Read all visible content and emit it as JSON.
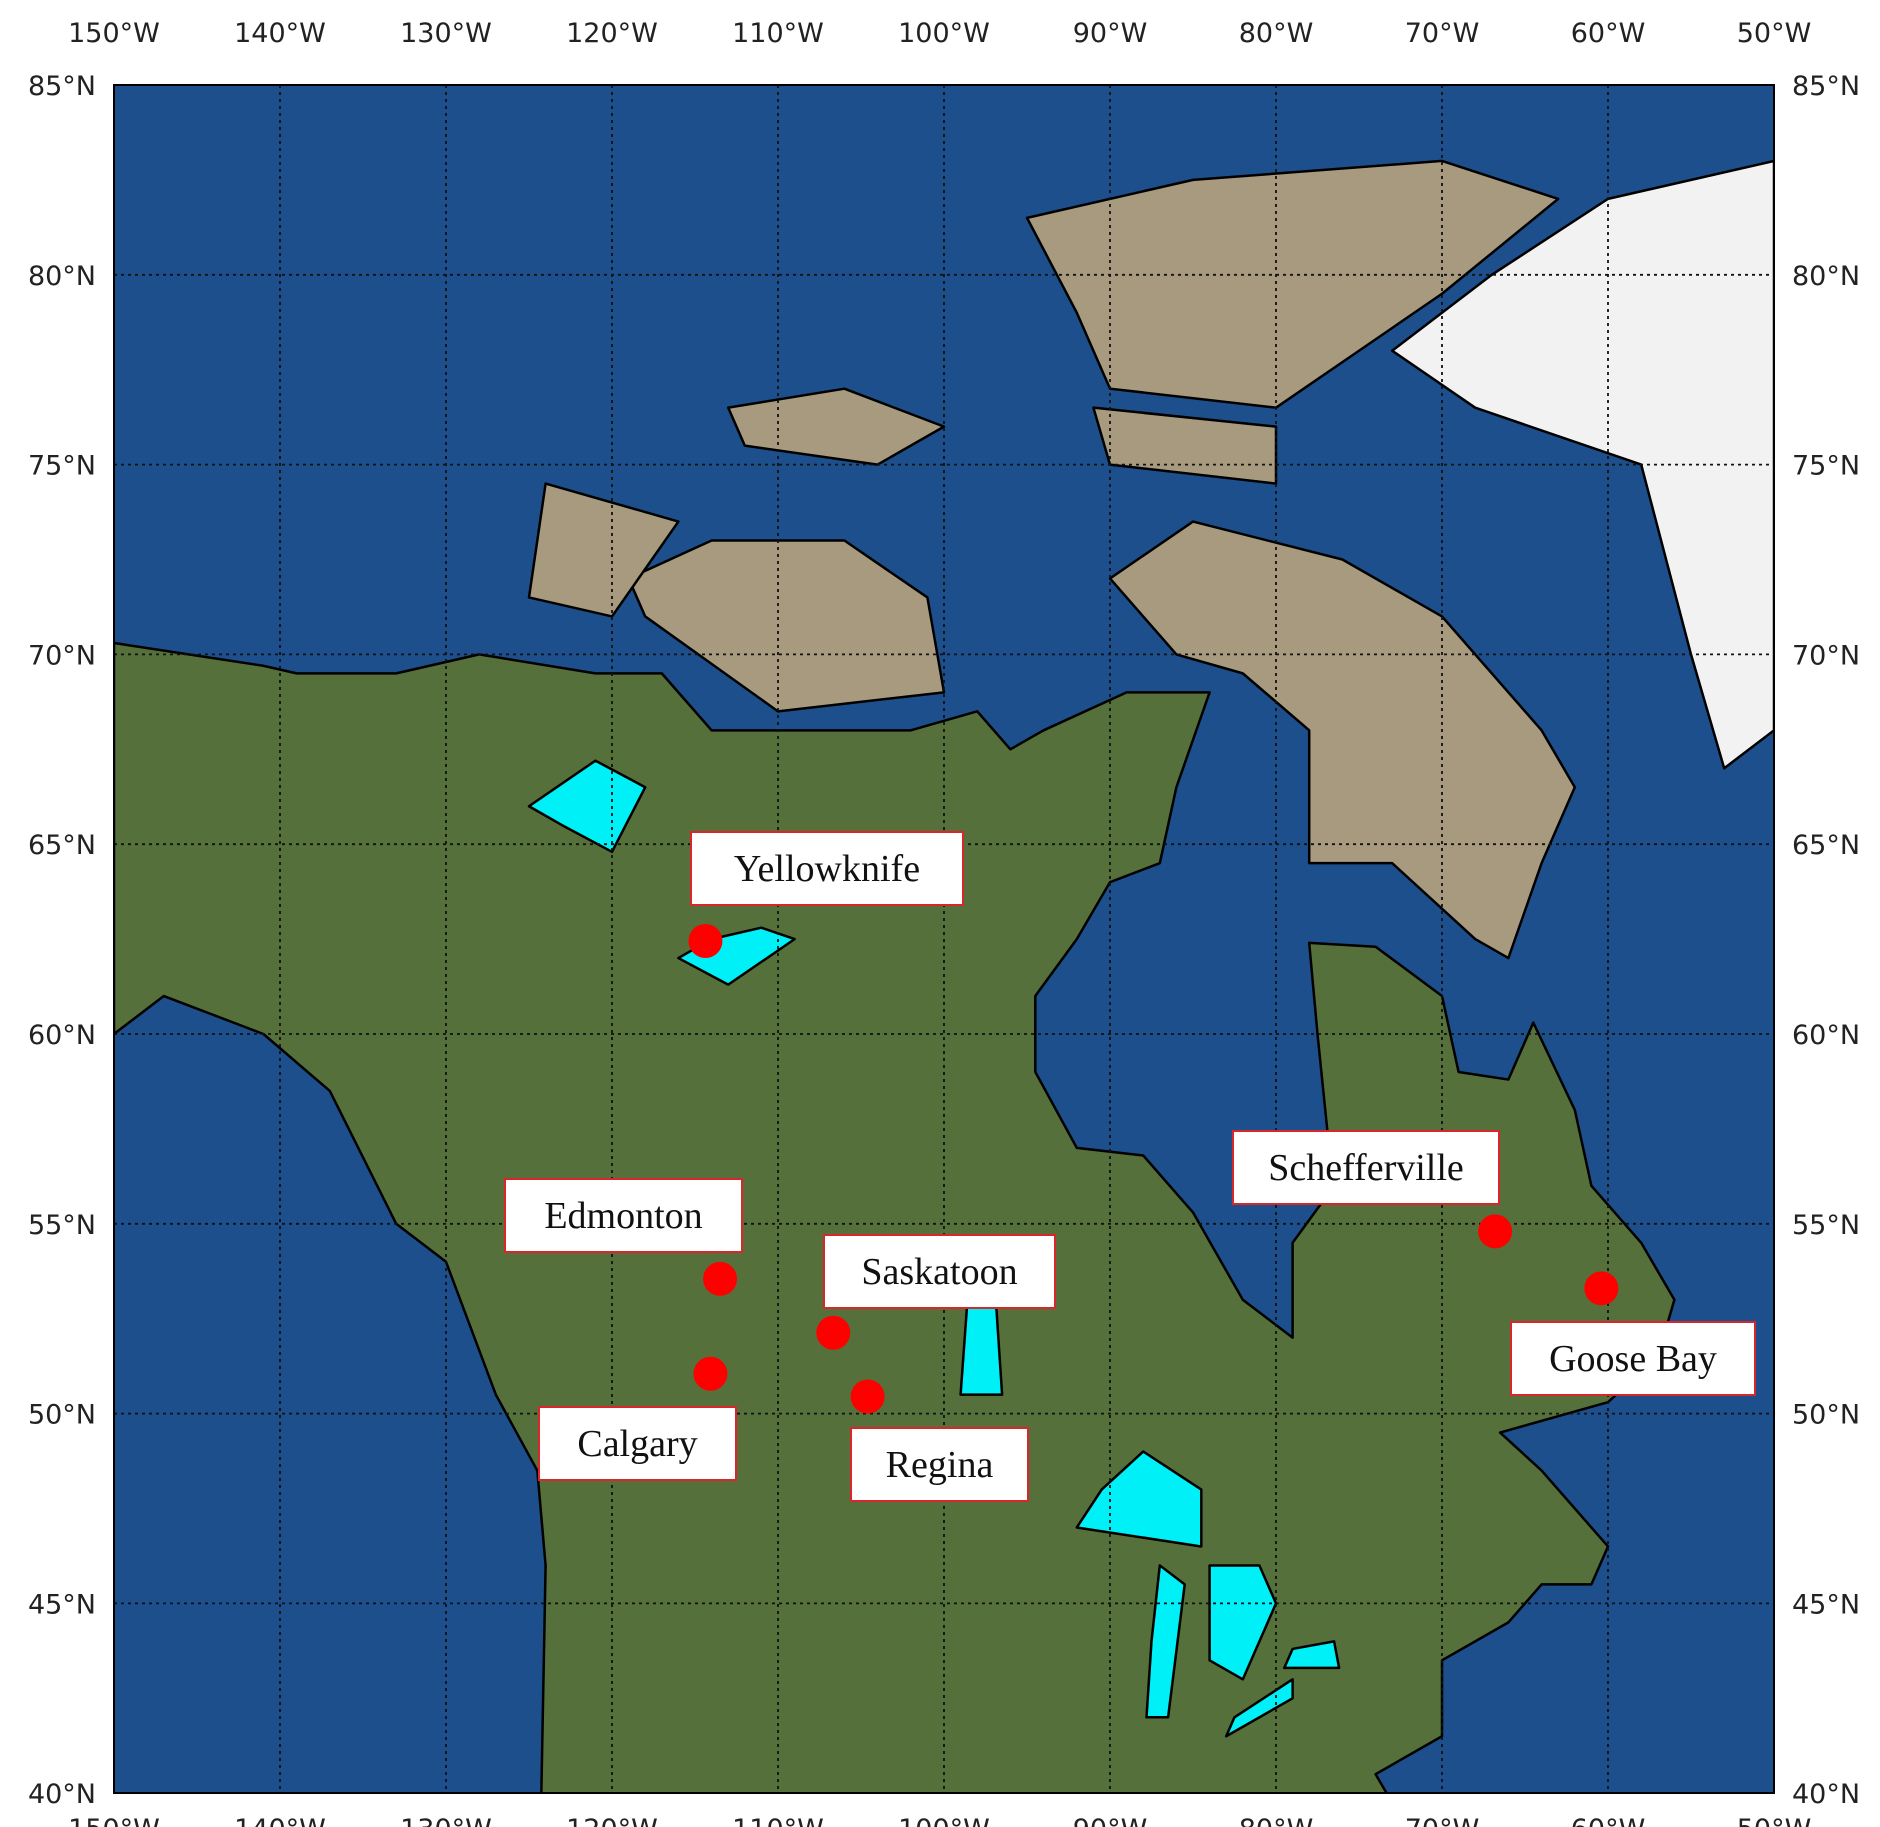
{
  "map": {
    "projection": "plate-carree",
    "extent": {
      "lon": [
        -150,
        -50
      ],
      "lat": [
        40,
        85
      ]
    },
    "grid": true,
    "lon_ticks": [
      "150°W",
      "140°W",
      "130°W",
      "120°W",
      "110°W",
      "100°W",
      "90°W",
      "80°W",
      "70°W",
      "60°W",
      "50°W"
    ],
    "lat_ticks": [
      "85°N",
      "80°N",
      "75°N",
      "70°N",
      "65°N",
      "60°N",
      "55°N",
      "50°N",
      "45°N",
      "40°N"
    ],
    "colors": {
      "ocean": "#1d4f8c",
      "land": "#55703a",
      "arctic_land": "#a79a7e",
      "ice": "#f2f2f2",
      "lakes": "#00f0f8",
      "marker": "#ff0000",
      "label_border": "#d9262b"
    },
    "cities": [
      {
        "name": "Yellowknife",
        "lat": 62.45,
        "lon": -114.37
      },
      {
        "name": "Edmonton",
        "lat": 53.55,
        "lon": -113.49
      },
      {
        "name": "Saskatoon",
        "lat": 52.13,
        "lon": -106.67
      },
      {
        "name": "Calgary",
        "lat": 51.05,
        "lon": -114.07
      },
      {
        "name": "Regina",
        "lat": 50.45,
        "lon": -104.6
      },
      {
        "name": "Schefferville",
        "lat": 54.8,
        "lon": -66.8
      },
      {
        "name": "Goose Bay",
        "lat": 53.3,
        "lon": -60.4
      }
    ]
  }
}
